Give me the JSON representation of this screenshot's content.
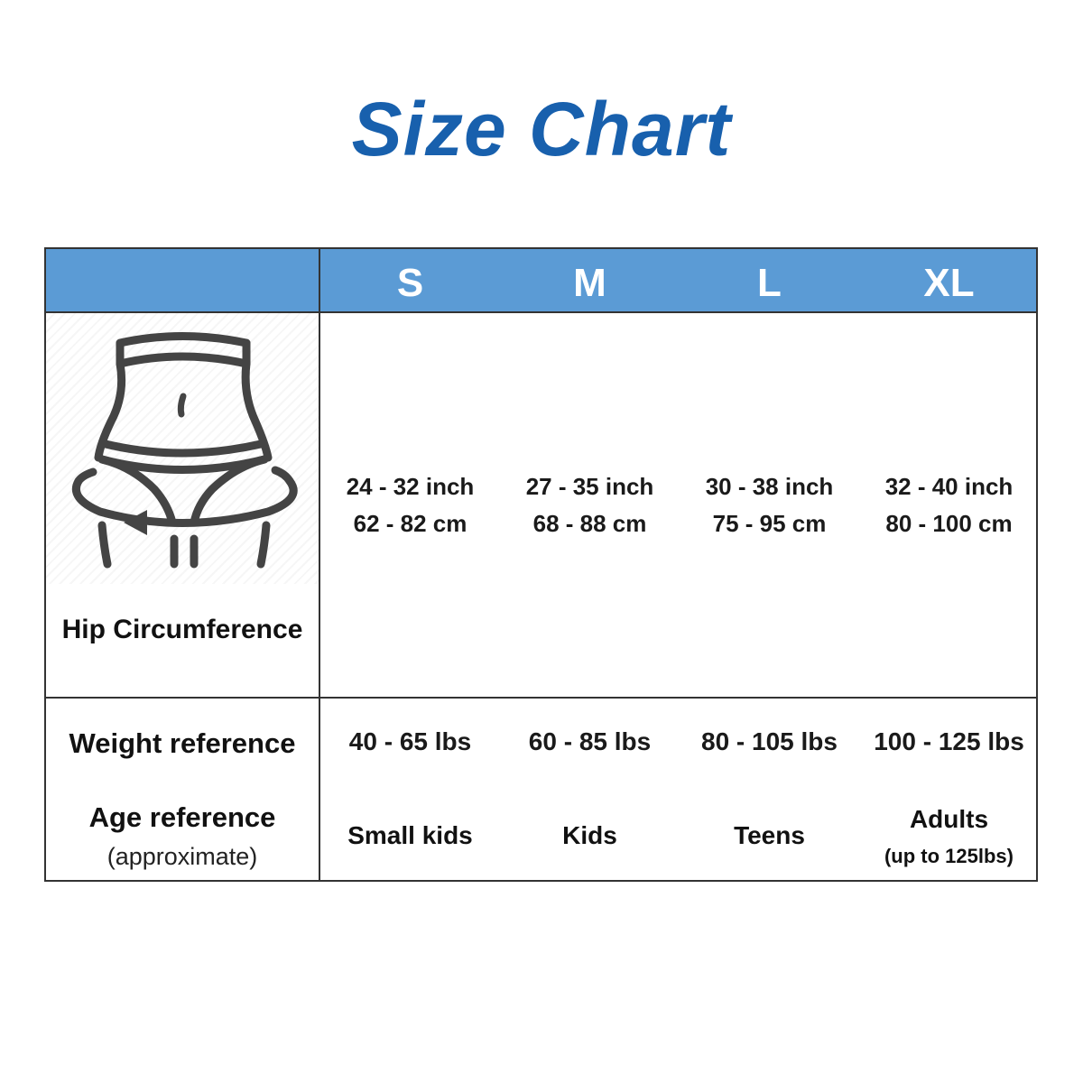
{
  "title": "Size Chart",
  "sizes": [
    "S",
    "M",
    "L",
    "XL"
  ],
  "hip": {
    "label": "Hip Circumference",
    "values": [
      {
        "inch": "24 - 32 inch",
        "cm": "62 - 82 cm"
      },
      {
        "inch": "27 - 35 inch",
        "cm": "68 - 88 cm"
      },
      {
        "inch": "30 - 38 inch",
        "cm": "75 - 95 cm"
      },
      {
        "inch": "32 - 40 inch",
        "cm": "80 - 100 cm"
      }
    ]
  },
  "weight": {
    "label": "Weight reference",
    "values": [
      "40 - 65 lbs",
      "60 - 85 lbs",
      "80 - 105 lbs",
      "100 - 125 lbs"
    ]
  },
  "age": {
    "label": "Age reference",
    "sublabel": "(approximate)",
    "values": [
      {
        "main": "Small kids",
        "note": ""
      },
      {
        "main": "Kids",
        "note": ""
      },
      {
        "main": "Teens",
        "note": ""
      },
      {
        "main": "Adults",
        "note": "(up to 125lbs)"
      }
    ]
  },
  "colors": {
    "title": "#1860ad",
    "header_bg": "#5b9bd5",
    "border": "#333333",
    "icon": "#444444"
  },
  "icons": {
    "illustration": "hip-measurement-icon"
  }
}
